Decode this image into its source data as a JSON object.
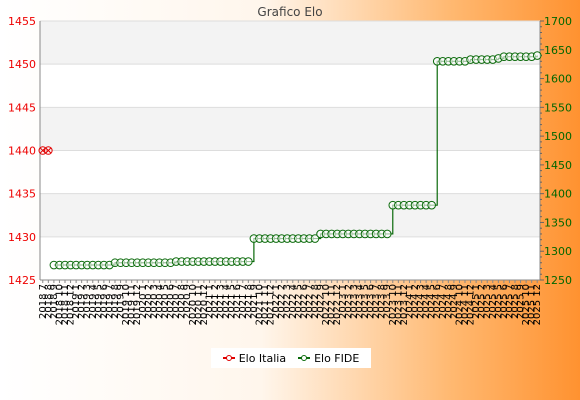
{
  "colors": {
    "series1": "#e00000",
    "series2": "#0a6a0a"
  },
  "chart_data": {
    "type": "line",
    "title": "Grafico Elo",
    "left_axis": {
      "ylim": [
        1425,
        1455
      ],
      "ticks": [
        "1425",
        "1430",
        "1435",
        "1440",
        "1445",
        "1450",
        "1455"
      ],
      "color": "#ee0000"
    },
    "right_axis": {
      "ylim": [
        1250,
        1700
      ],
      "ticks": [
        "1250",
        "1300",
        "1350",
        "1400",
        "1450",
        "1500",
        "1550",
        "1600",
        "1650",
        "1700"
      ],
      "color": "#006600"
    },
    "grid": true,
    "legend_placement": "bottom-center",
    "categories": [
      "2018 7",
      "2018 8",
      "2018 9",
      "2018 10",
      "2018 11",
      "2018 12",
      "2019 1",
      "2019 2",
      "2019 3",
      "2019 4",
      "2019 5",
      "2019 6",
      "2019 7",
      "2019 8",
      "2019 9",
      "2019 10",
      "2019 11",
      "2019 12",
      "2020 1",
      "2020 2",
      "2020 3",
      "2020 4",
      "2020 5",
      "2020 6",
      "2020 7",
      "2020 8",
      "2020 9",
      "2020 10",
      "2020 11",
      "2020 12",
      "2021 1",
      "2021 2",
      "2021 3",
      "2021 4",
      "2021 5",
      "2021 6",
      "2021 7",
      "2021 8",
      "2021 9",
      "2021 10",
      "2021 11",
      "2021 12",
      "2022 1",
      "2022 2",
      "2022 3",
      "2022 4",
      "2022 5",
      "2022 6",
      "2022 7",
      "2022 8",
      "2022 9",
      "2022 10",
      "2022 11",
      "2022 12",
      "2023 1",
      "2023 2",
      "2023 3",
      "2023 4",
      "2023 5",
      "2023 6",
      "2023 7",
      "2023 8",
      "2023 9",
      "2023 10",
      "2023 11",
      "2023 12",
      "2024 1",
      "2024 2",
      "2024 3",
      "2024 4",
      "2024 5",
      "2024 6",
      "2024 7",
      "2024 8",
      "2024 9",
      "2024 10",
      "2024 11",
      "2024 12",
      "2025 1",
      "2025 2",
      "2025 3",
      "2025 4",
      "2025 5",
      "2025 6",
      "2025 7",
      "2025 8",
      "2025 9",
      "2025 10",
      "2025 11",
      "2025 12"
    ],
    "series": [
      {
        "name": "Elo Italia",
        "axis": "left",
        "color": "#e00000",
        "values": [
          1440,
          1440,
          null,
          null,
          null,
          null,
          null,
          null,
          null,
          null,
          null,
          null,
          null,
          null,
          null,
          null,
          null,
          null,
          null,
          null,
          null,
          null,
          null,
          null,
          null,
          null,
          null,
          null,
          null,
          null,
          null,
          null,
          null,
          null,
          null,
          null,
          null,
          null,
          null,
          null,
          null,
          null,
          null,
          null,
          null,
          null,
          null,
          null,
          null,
          null,
          null,
          null,
          null,
          null,
          null,
          null,
          null,
          null,
          null,
          null,
          null,
          null,
          null,
          null,
          null,
          null,
          null,
          null,
          null,
          null,
          null,
          null,
          null,
          null,
          null,
          null,
          null,
          null,
          null,
          null,
          null,
          null,
          null,
          null,
          null,
          null,
          null,
          null,
          null,
          null
        ]
      },
      {
        "name": "Elo FIDE",
        "axis": "right",
        "color": "#0a6a0a",
        "values": [
          null,
          null,
          1276,
          1276,
          1276,
          1276,
          1276,
          1276,
          1276,
          1276,
          1276,
          1276,
          1276,
          1280,
          1280,
          1280,
          1280,
          1280,
          1280,
          1280,
          1280,
          1280,
          1280,
          1280,
          1282,
          1282,
          1282,
          1282,
          1282,
          1282,
          1282,
          1282,
          1282,
          1282,
          1282,
          1282,
          1282,
          1282,
          1322,
          1322,
          1322,
          1322,
          1322,
          1322,
          1322,
          1322,
          1322,
          1322,
          1322,
          1322,
          1330,
          1330,
          1330,
          1330,
          1330,
          1330,
          1330,
          1330,
          1330,
          1330,
          1330,
          1330,
          1330,
          1380,
          1380,
          1380,
          1380,
          1380,
          1380,
          1380,
          1380,
          1630,
          1630,
          1630,
          1630,
          1630,
          1630,
          1633,
          1633,
          1633,
          1633,
          1633,
          1635,
          1638,
          1638,
          1638,
          1638,
          1638,
          1638,
          1640
        ]
      }
    ]
  }
}
